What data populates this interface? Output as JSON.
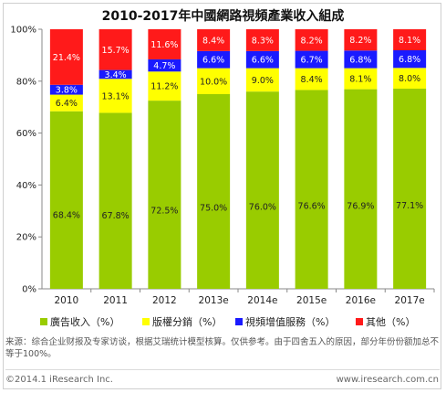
{
  "chart_data": {
    "type": "bar",
    "stacked": true,
    "title": "2010-2017年中國網路視頻產業收入組成",
    "categories": [
      "2010",
      "2011",
      "2012",
      "2013e",
      "2014e",
      "2015e",
      "2016e",
      "2017e"
    ],
    "series": [
      {
        "name": "廣告收入（%）",
        "color": "#99cc00",
        "values": [
          68.4,
          67.8,
          72.5,
          75.0,
          76.0,
          76.6,
          76.9,
          77.1
        ],
        "labels": [
          "68.4%",
          "67.8%",
          "72.5%",
          "75.0%",
          "76.0%",
          "76.6%",
          "76.9%",
          "77.1%"
        ]
      },
      {
        "name": "版權分銷（%）",
        "color": "#ffff00",
        "values": [
          6.4,
          13.1,
          11.2,
          10.0,
          9.0,
          8.4,
          8.1,
          8.0
        ],
        "labels": [
          "6.4%",
          "13.1%",
          "11.2%",
          "10.0%",
          "9.0%",
          "8.4%",
          "8.1%",
          "8.0%"
        ]
      },
      {
        "name": "視頻增值服務（%）",
        "color": "#1a1aff",
        "values": [
          3.8,
          3.4,
          4.7,
          6.6,
          6.6,
          6.7,
          6.8,
          6.8
        ],
        "labels": [
          "3.8%",
          "3.4%",
          "4.7%",
          "6.6%",
          "6.6%",
          "6.7%",
          "6.8%",
          "6.8%"
        ]
      },
      {
        "name": "其他（%）",
        "color": "#ff1a1a",
        "values": [
          21.4,
          15.7,
          11.6,
          8.4,
          8.3,
          8.2,
          8.2,
          8.1
        ],
        "labels": [
          "21.4%",
          "15.7%",
          "11.6%",
          "8.4%",
          "8.3%",
          "8.2%",
          "8.2%",
          "8.1%"
        ]
      }
    ],
    "ylim": [
      0,
      100
    ],
    "yticks": [
      "0%",
      "20%",
      "40%",
      "60%",
      "80%",
      "100%"
    ],
    "xlabel": "",
    "ylabel": "",
    "grid": false,
    "legend": "bottom"
  },
  "source_note": "来源：综合企业财报及专家访谈，根据艾瑞统计模型核算。仅供参考。由于四舍五入的原因，部分年份份额加总不等于100%。",
  "copyright": "©2014.1 iResearch Inc.",
  "website": "www.iresearch.com.cn"
}
